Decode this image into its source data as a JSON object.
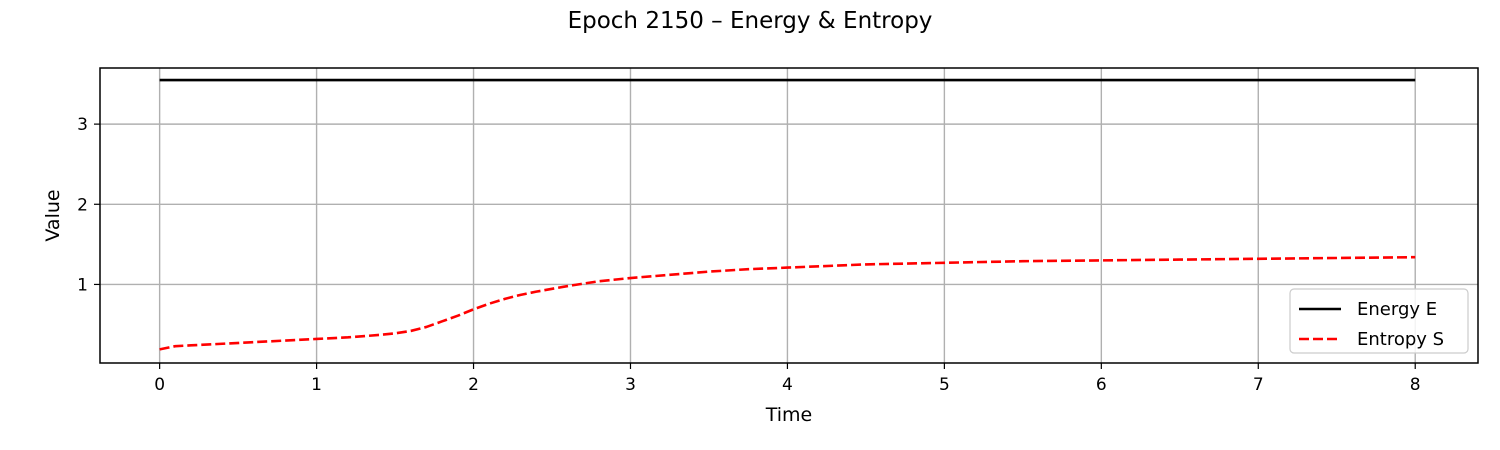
{
  "chart_data": {
    "type": "line",
    "title": "Epoch 2150 – Energy & Entropy",
    "xlabel": "Time",
    "ylabel": "Value",
    "xlim": [
      -0.38,
      8.4
    ],
    "ylim": [
      0.02,
      3.7
    ],
    "xticks": [
      0,
      1,
      2,
      3,
      4,
      5,
      6,
      7,
      8
    ],
    "yticks": [
      1,
      2,
      3
    ],
    "grid": true,
    "legend_position": "lower-right",
    "series": [
      {
        "name": "Energy E",
        "color": "#000000",
        "style": "solid",
        "x": [
          0,
          8
        ],
        "y": [
          3.55,
          3.55
        ]
      },
      {
        "name": "Entropy S",
        "color": "#ff0000",
        "style": "dashed",
        "x": [
          0,
          0.05,
          0.1,
          0.2,
          0.4,
          0.6,
          0.8,
          1.0,
          1.2,
          1.4,
          1.5,
          1.6,
          1.7,
          1.8,
          1.9,
          2.0,
          2.1,
          2.2,
          2.3,
          2.4,
          2.6,
          2.8,
          3.0,
          3.25,
          3.5,
          3.75,
          4.0,
          4.5,
          5.0,
          5.5,
          6.0,
          6.5,
          7.0,
          7.5,
          8.0
        ],
        "y": [
          0.19,
          0.21,
          0.23,
          0.24,
          0.26,
          0.28,
          0.3,
          0.32,
          0.34,
          0.37,
          0.39,
          0.42,
          0.47,
          0.54,
          0.61,
          0.69,
          0.76,
          0.82,
          0.87,
          0.91,
          0.98,
          1.04,
          1.08,
          1.12,
          1.16,
          1.19,
          1.21,
          1.25,
          1.27,
          1.29,
          1.3,
          1.31,
          1.32,
          1.33,
          1.34
        ]
      }
    ]
  }
}
